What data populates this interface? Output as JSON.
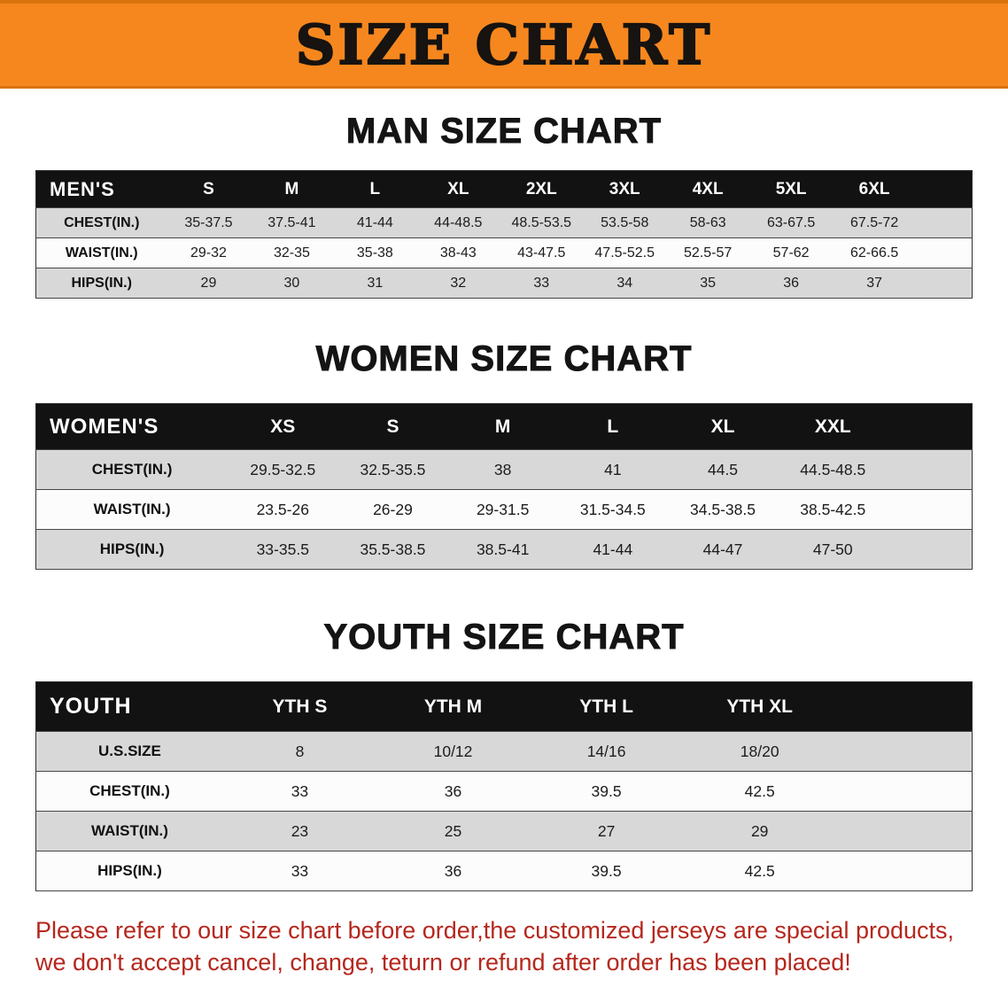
{
  "banner": {
    "title": "SIZE CHART"
  },
  "colors": {
    "banner-bg": "#f6871f",
    "banner-edge": "#d9730e",
    "banner-text": "#161310",
    "header-bg": "#121212",
    "header-text": "#ffffff",
    "row-alt": "#d8d8d8",
    "row-base": "#fcfcfc",
    "disclaimer-color": "#b5271d"
  },
  "sections": [
    {
      "heading": "MAN SIZE CHART",
      "table": {
        "header": [
          "MEN'S",
          "S",
          "M",
          "L",
          "XL",
          "2XL",
          "3XL",
          "4XL",
          "5XL",
          "6XL"
        ],
        "rows": [
          [
            "CHEST(IN.)",
            "35-37.5",
            "37.5-41",
            "41-44",
            "44-48.5",
            "48.5-53.5",
            "53.5-58",
            "58-63",
            "63-67.5",
            "67.5-72"
          ],
          [
            "WAIST(IN.)",
            "29-32",
            "32-35",
            "35-38",
            "38-43",
            "43-47.5",
            "47.5-52.5",
            "52.5-57",
            "57-62",
            "62-66.5"
          ],
          [
            "HIPS(IN.)",
            "29",
            "30",
            "31",
            "32",
            "33",
            "34",
            "35",
            "36",
            "37"
          ]
        ]
      }
    },
    {
      "heading": "WOMEN SIZE CHART",
      "table": {
        "header": [
          "WOMEN'S",
          "XS",
          "S",
          "M",
          "L",
          "XL",
          "XXL"
        ],
        "rows": [
          [
            "CHEST(IN.)",
            "29.5-32.5",
            "32.5-35.5",
            "38",
            "41",
            "44.5",
            "44.5-48.5"
          ],
          [
            "WAIST(IN.)",
            "23.5-26",
            "26-29",
            "29-31.5",
            "31.5-34.5",
            "34.5-38.5",
            "38.5-42.5"
          ],
          [
            "HIPS(IN.)",
            "33-35.5",
            "35.5-38.5",
            "38.5-41",
            "41-44",
            "44-47",
            "47-50"
          ]
        ]
      }
    },
    {
      "heading": "YOUTH SIZE CHART",
      "table": {
        "header": [
          "YOUTH",
          "YTH S",
          "YTH M",
          "YTH L",
          "YTH XL"
        ],
        "rows": [
          [
            "U.S.SIZE",
            "8",
            "10/12",
            "14/16",
            "18/20"
          ],
          [
            "CHEST(IN.)",
            "33",
            "36",
            "39.5",
            "42.5"
          ],
          [
            "WAIST(IN.)",
            "23",
            "25",
            "27",
            "29"
          ],
          [
            "HIPS(IN.)",
            "33",
            "36",
            "39.5",
            "42.5"
          ]
        ]
      }
    }
  ],
  "disclaimer": {
    "line1": "Please refer to our size chart before order,the customized jerseys are special products,",
    "line2": "we don't accept cancel, change, teturn or refund after order has been placed!"
  }
}
